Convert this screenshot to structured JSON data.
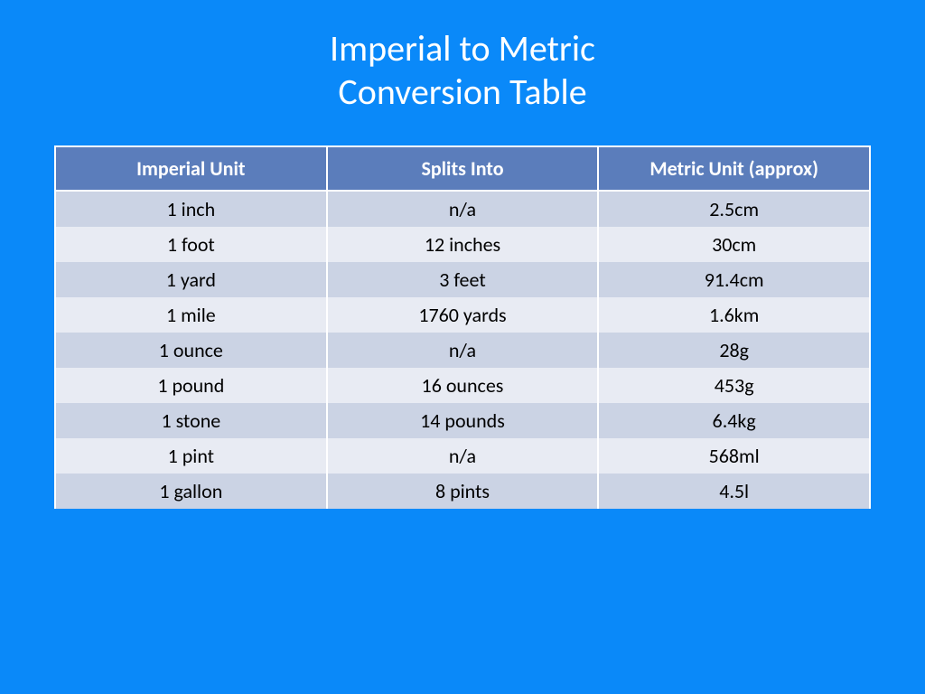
{
  "title_line1": "Imperial to Metric",
  "title_line2": "Conversion Table",
  "background_color": "#0a89f9",
  "table": {
    "header_bg": "#5b7dbb",
    "header_fg": "#ffffff",
    "row_odd_bg": "#cbd3e4",
    "row_even_bg": "#e8ebf3",
    "cell_fg": "#000000",
    "border_color": "#ffffff",
    "header_fontsize": 22,
    "cell_fontsize": 22,
    "columns": [
      "Imperial Unit",
      "Splits Into",
      "Metric Unit (approx)"
    ],
    "rows": [
      [
        "1 inch",
        "n/a",
        "2.5cm"
      ],
      [
        "1 foot",
        "12 inches",
        "30cm"
      ],
      [
        "1 yard",
        "3 feet",
        "91.4cm"
      ],
      [
        "1 mile",
        "1760 yards",
        "1.6km"
      ],
      [
        "1 ounce",
        "n/a",
        "28g"
      ],
      [
        "1 pound",
        "16 ounces",
        "453g"
      ],
      [
        "1 stone",
        "14 pounds",
        "6.4kg"
      ],
      [
        "1 pint",
        "n/a",
        "568ml"
      ],
      [
        "1 gallon",
        "8 pints",
        "4.5l"
      ]
    ]
  }
}
